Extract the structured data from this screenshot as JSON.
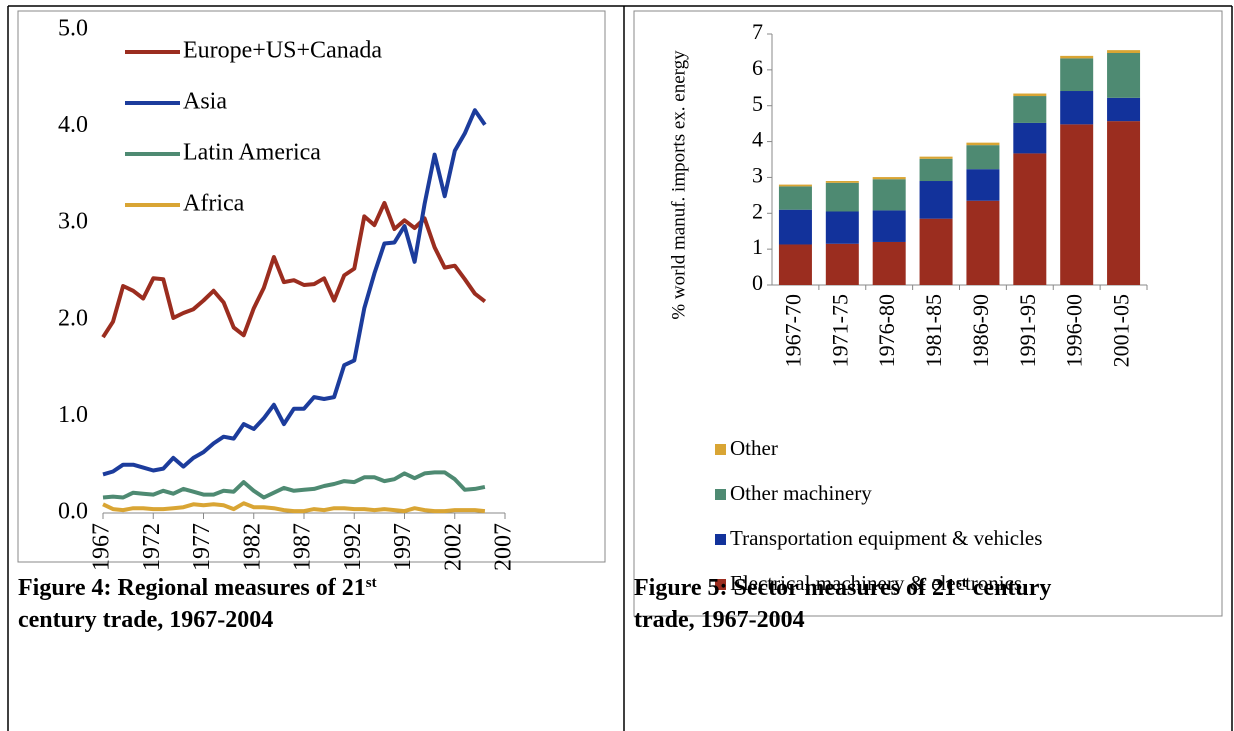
{
  "chart_data": [
    {
      "type": "line",
      "x": [
        1967,
        1968,
        1969,
        1970,
        1971,
        1972,
        1973,
        1974,
        1975,
        1976,
        1977,
        1978,
        1979,
        1980,
        1981,
        1982,
        1983,
        1984,
        1985,
        1986,
        1987,
        1988,
        1989,
        1990,
        1991,
        1992,
        1993,
        1994,
        1995,
        1996,
        1997,
        1998,
        1999,
        2000,
        2001,
        2002,
        2003,
        2004,
        2005
      ],
      "series": [
        {
          "name": "Europe+US+Canada",
          "color": "#9b2d1f",
          "values": [
            1.82,
            1.98,
            2.35,
            2.3,
            2.22,
            2.43,
            2.42,
            2.02,
            2.07,
            2.11,
            2.2,
            2.3,
            2.18,
            1.92,
            1.84,
            2.12,
            2.33,
            2.65,
            2.39,
            2.41,
            2.36,
            2.37,
            2.43,
            2.2,
            2.46,
            2.53,
            3.07,
            2.98,
            3.21,
            2.94,
            3.03,
            2.95,
            3.05,
            2.75,
            2.54,
            2.56,
            2.42,
            2.27,
            2.19
          ]
        },
        {
          "name": "Asia",
          "color": "#1c3c9c",
          "values": [
            0.4,
            0.43,
            0.5,
            0.5,
            0.47,
            0.44,
            0.46,
            0.57,
            0.48,
            0.57,
            0.63,
            0.72,
            0.79,
            0.77,
            0.92,
            0.87,
            0.98,
            1.12,
            0.92,
            1.08,
            1.08,
            1.2,
            1.18,
            1.2,
            1.53,
            1.58,
            2.12,
            2.48,
            2.79,
            2.8,
            2.97,
            2.6,
            3.2,
            3.71,
            3.28,
            3.75,
            3.93,
            4.17,
            4.02
          ]
        },
        {
          "name": "Latin America",
          "color": "#4e8a72",
          "values": [
            0.16,
            0.17,
            0.16,
            0.21,
            0.2,
            0.19,
            0.23,
            0.2,
            0.25,
            0.22,
            0.19,
            0.19,
            0.23,
            0.22,
            0.32,
            0.23,
            0.16,
            0.21,
            0.26,
            0.23,
            0.24,
            0.25,
            0.28,
            0.3,
            0.33,
            0.32,
            0.37,
            0.37,
            0.33,
            0.35,
            0.41,
            0.36,
            0.41,
            0.42,
            0.42,
            0.35,
            0.24,
            0.25,
            0.27
          ]
        },
        {
          "name": "Africa",
          "color": "#d9a534",
          "values": [
            0.09,
            0.04,
            0.03,
            0.05,
            0.05,
            0.04,
            0.04,
            0.05,
            0.06,
            0.09,
            0.08,
            0.09,
            0.08,
            0.04,
            0.1,
            0.06,
            0.06,
            0.05,
            0.03,
            0.02,
            0.02,
            0.04,
            0.03,
            0.05,
            0.05,
            0.04,
            0.04,
            0.03,
            0.04,
            0.03,
            0.02,
            0.05,
            0.03,
            0.02,
            0.02,
            0.03,
            0.03,
            0.03,
            0.02
          ]
        }
      ],
      "xlim": [
        1967,
        2007
      ],
      "xticks": [
        1967,
        1972,
        1977,
        1982,
        1987,
        1992,
        1997,
        2002,
        2007
      ],
      "ylim": [
        0,
        5
      ],
      "yticks": [
        {
          "value": 0,
          "label": "0.0"
        },
        {
          "value": 1,
          "label": "1.0"
        },
        {
          "value": 2,
          "label": "2.0"
        },
        {
          "value": 3,
          "label": "3.0"
        },
        {
          "value": 4,
          "label": "4.0"
        },
        {
          "value": 5,
          "label": "5.0"
        }
      ],
      "legend": "top-left"
    },
    {
      "type": "stacked-bar",
      "y_label": "% world manuf. imports ex. energy",
      "categories": [
        "1967-70",
        "1971-75",
        "1976-80",
        "1981-85",
        "1986-90",
        "1991-95",
        "1996-00",
        "2001-05"
      ],
      "series": [
        {
          "name": "Electrical machinery & electronics",
          "color": "#9b2d1f",
          "values": [
            1.13,
            1.15,
            1.2,
            1.85,
            2.35,
            3.67,
            4.48,
            4.57
          ]
        },
        {
          "name": "Transportation equipment & vehicles",
          "color": "#12329b",
          "values": [
            0.97,
            0.9,
            0.88,
            1.05,
            0.88,
            0.85,
            0.93,
            0.65
          ]
        },
        {
          "name": "Other machinery",
          "color": "#4e8a72",
          "values": [
            0.65,
            0.8,
            0.87,
            0.62,
            0.67,
            0.75,
            0.91,
            1.25
          ]
        },
        {
          "name": "Other",
          "color": "#d9a534",
          "values": [
            0.05,
            0.05,
            0.06,
            0.06,
            0.07,
            0.07,
            0.07,
            0.08
          ]
        }
      ],
      "ylim": [
        0,
        7
      ],
      "yticks": [
        0,
        1,
        2,
        3,
        4,
        5,
        6,
        7
      ],
      "legend": "bottom"
    }
  ],
  "captions": [
    {
      "lines": [
        [
          {
            "text": "Figure 4: Regional measures of 21"
          },
          {
            "text": "st",
            "sup": true
          }
        ],
        [
          {
            "text": "century trade, 1967-2004"
          }
        ]
      ]
    },
    {
      "lines": [
        [
          {
            "text": "Figure 5: Sector measures of 21"
          },
          {
            "text": "st",
            "sup": true
          },
          {
            "text": " century"
          }
        ],
        [
          {
            "text": "trade, 1967-2004"
          }
        ]
      ]
    }
  ]
}
